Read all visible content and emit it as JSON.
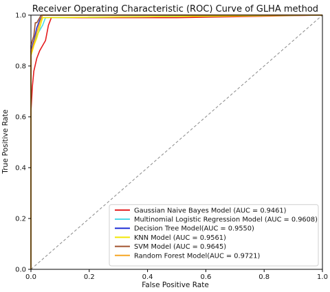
{
  "chart_data": {
    "type": "line",
    "title": "Receiver Operating Characteristic (ROC) Curve of GLHA method",
    "xlabel": "False Positive Rate",
    "ylabel": "True Positive Rate",
    "xlim": [
      0.0,
      1.0
    ],
    "ylim": [
      0.0,
      1.0
    ],
    "xticks": [
      "0.0",
      "0.2",
      "0.4",
      "0.6",
      "0.8",
      "1.0"
    ],
    "yticks": [
      "0.0",
      "0.2",
      "0.4",
      "0.6",
      "0.8",
      "1.0"
    ],
    "grid": false,
    "legend_position": "lower-right",
    "diagonal": {
      "x": [
        0.0,
        1.0
      ],
      "y": [
        0.0,
        1.0
      ],
      "color": "#888888",
      "style": "dashed"
    },
    "series": [
      {
        "name": "Gaussian Naive Bayes Model (AUC = 0.9461)",
        "color": "#e41a1c",
        "x": [
          0.0,
          0.0,
          0.005,
          0.01,
          0.02,
          0.03,
          0.04,
          0.05,
          0.06,
          0.07,
          0.5,
          1.0
        ],
        "y": [
          0.0,
          0.62,
          0.72,
          0.78,
          0.83,
          0.86,
          0.88,
          0.9,
          0.96,
          0.99,
          0.99,
          1.0
        ]
      },
      {
        "name": "Multinomial Logistic Regression Model (AUC = 0.9608)",
        "color": "#4dd9e8",
        "x": [
          0.0,
          0.0,
          0.01,
          0.02,
          0.03,
          0.04,
          0.05,
          1.0
        ],
        "y": [
          0.0,
          0.84,
          0.89,
          0.92,
          0.94,
          0.96,
          0.99,
          1.0
        ]
      },
      {
        "name": "Decision Tree Model(AUC = 0.9550)",
        "color": "#1f2fd6",
        "x": [
          0.0,
          0.0,
          0.01,
          0.02,
          0.03,
          0.04,
          1.0
        ],
        "y": [
          0.0,
          0.86,
          0.9,
          0.95,
          0.98,
          1.0,
          1.0
        ]
      },
      {
        "name": "KNN Model (AUC = 0.9561)",
        "color": "#f2e600",
        "x": [
          0.0,
          0.0,
          0.01,
          0.02,
          0.03,
          0.04,
          1.0
        ],
        "y": [
          0.0,
          0.84,
          0.88,
          0.91,
          0.95,
          0.99,
          1.0
        ]
      },
      {
        "name": "SVM Model (AUC = 0.9645)",
        "color": "#a0522d",
        "x": [
          0.0,
          0.0,
          0.01,
          0.015,
          0.02,
          0.03,
          0.035,
          1.0
        ],
        "y": [
          0.0,
          0.88,
          0.92,
          0.97,
          0.97,
          0.99,
          1.0,
          1.0
        ]
      },
      {
        "name": "Random Forest Model(AUC = 0.9721)",
        "color": "#f5a623",
        "x": [
          0.0,
          0.0,
          0.01,
          0.02,
          0.03,
          0.04,
          1.0
        ],
        "y": [
          0.0,
          0.85,
          0.89,
          0.93,
          0.97,
          1.0,
          1.0
        ]
      }
    ]
  }
}
